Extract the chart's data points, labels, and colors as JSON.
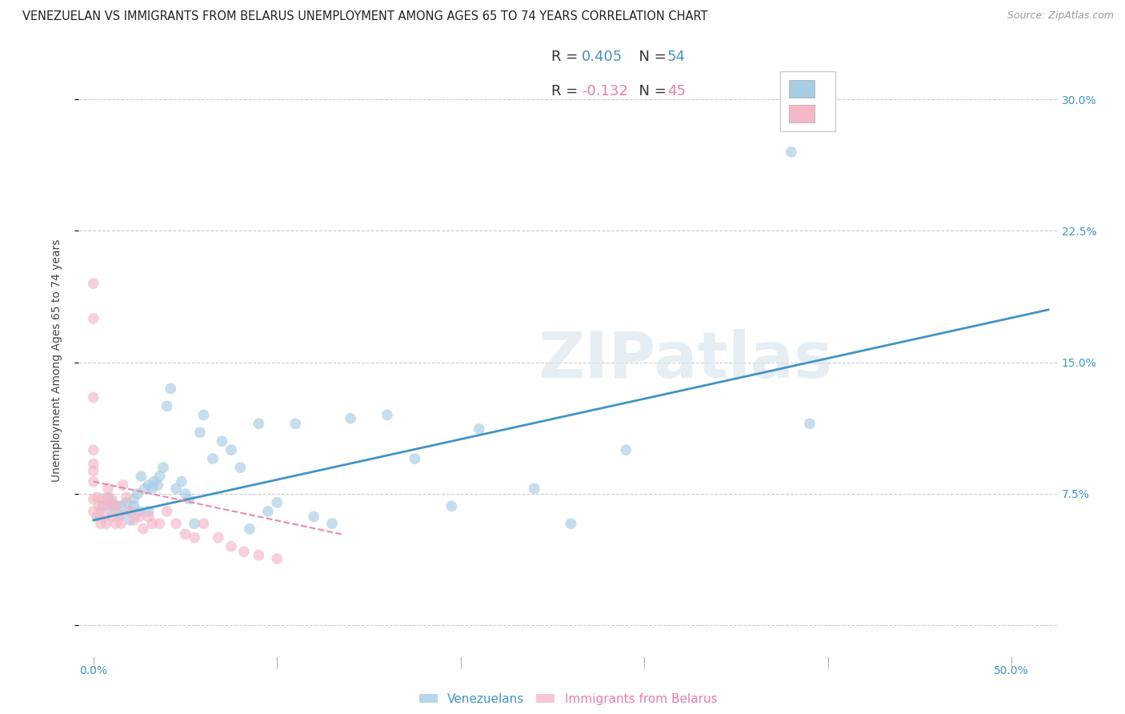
{
  "title": "VENEZUELAN VS IMMIGRANTS FROM BELARUS UNEMPLOYMENT AMONG AGES 65 TO 74 YEARS CORRELATION CHART",
  "source": "Source: ZipAtlas.com",
  "ylabel": "Unemployment Among Ages 65 to 74 years",
  "watermark": "ZIPatlas",
  "legend_r1": "R = 0.405",
  "legend_n1": "N = 54",
  "legend_r2": "R = -0.132",
  "legend_n2": "N = 45",
  "blue_color": "#a8cce4",
  "pink_color": "#f4b8c8",
  "blue_line_color": "#4393c3",
  "pink_line_color": "#e87da8",
  "title_fontsize": 10.5,
  "axis_label_fontsize": 10,
  "tick_fontsize": 10,
  "x_min": -0.008,
  "x_max": 0.525,
  "y_min": -0.018,
  "y_max": 0.32,
  "x_ticks": [
    0.0,
    0.1,
    0.2,
    0.3,
    0.4,
    0.5
  ],
  "x_tick_labels": [
    "0.0%",
    "",
    "",
    "",
    "",
    "50.0%"
  ],
  "y_ticks": [
    0.0,
    0.075,
    0.15,
    0.225,
    0.3
  ],
  "y_tick_labels_right": [
    "",
    "7.5%",
    "15.0%",
    "22.5%",
    "30.0%"
  ],
  "venezuelan_x": [
    0.002,
    0.005,
    0.008,
    0.01,
    0.01,
    0.012,
    0.015,
    0.015,
    0.018,
    0.02,
    0.02,
    0.022,
    0.022,
    0.024,
    0.025,
    0.026,
    0.028,
    0.03,
    0.03,
    0.032,
    0.033,
    0.035,
    0.036,
    0.038,
    0.04,
    0.042,
    0.045,
    0.048,
    0.05,
    0.052,
    0.055,
    0.058,
    0.06,
    0.065,
    0.07,
    0.075,
    0.08,
    0.085,
    0.09,
    0.095,
    0.1,
    0.11,
    0.12,
    0.13,
    0.14,
    0.16,
    0.175,
    0.195,
    0.21,
    0.24,
    0.26,
    0.29,
    0.38,
    0.39
  ],
  "venezuelan_y": [
    0.062,
    0.068,
    0.073,
    0.065,
    0.07,
    0.068,
    0.063,
    0.068,
    0.07,
    0.06,
    0.065,
    0.068,
    0.072,
    0.075,
    0.065,
    0.085,
    0.078,
    0.065,
    0.08,
    0.078,
    0.082,
    0.08,
    0.085,
    0.09,
    0.125,
    0.135,
    0.078,
    0.082,
    0.075,
    0.072,
    0.058,
    0.11,
    0.12,
    0.095,
    0.105,
    0.1,
    0.09,
    0.055,
    0.115,
    0.065,
    0.07,
    0.115,
    0.062,
    0.058,
    0.118,
    0.12,
    0.095,
    0.068,
    0.112,
    0.078,
    0.058,
    0.1,
    0.27,
    0.115
  ],
  "belarus_x": [
    0.0,
    0.0,
    0.0,
    0.0,
    0.0,
    0.0,
    0.0,
    0.0,
    0.0,
    0.002,
    0.003,
    0.003,
    0.004,
    0.005,
    0.006,
    0.006,
    0.007,
    0.008,
    0.008,
    0.01,
    0.01,
    0.01,
    0.012,
    0.013,
    0.014,
    0.015,
    0.016,
    0.018,
    0.02,
    0.022,
    0.025,
    0.027,
    0.03,
    0.032,
    0.036,
    0.04,
    0.045,
    0.05,
    0.055,
    0.06,
    0.068,
    0.075,
    0.082,
    0.09,
    0.1
  ],
  "belarus_y": [
    0.195,
    0.175,
    0.13,
    0.1,
    0.092,
    0.088,
    0.082,
    0.072,
    0.065,
    0.073,
    0.068,
    0.063,
    0.058,
    0.072,
    0.068,
    0.062,
    0.058,
    0.078,
    0.072,
    0.072,
    0.068,
    0.062,
    0.058,
    0.068,
    0.062,
    0.058,
    0.08,
    0.073,
    0.065,
    0.06,
    0.062,
    0.055,
    0.062,
    0.058,
    0.058,
    0.065,
    0.058,
    0.052,
    0.05,
    0.058,
    0.05,
    0.045,
    0.042,
    0.04,
    0.038
  ],
  "blue_trend_x": [
    0.0,
    0.52
  ],
  "blue_trend_y": [
    0.06,
    0.18
  ],
  "pink_trend_x": [
    0.0,
    0.135
  ],
  "pink_trend_y": [
    0.082,
    0.052
  ]
}
